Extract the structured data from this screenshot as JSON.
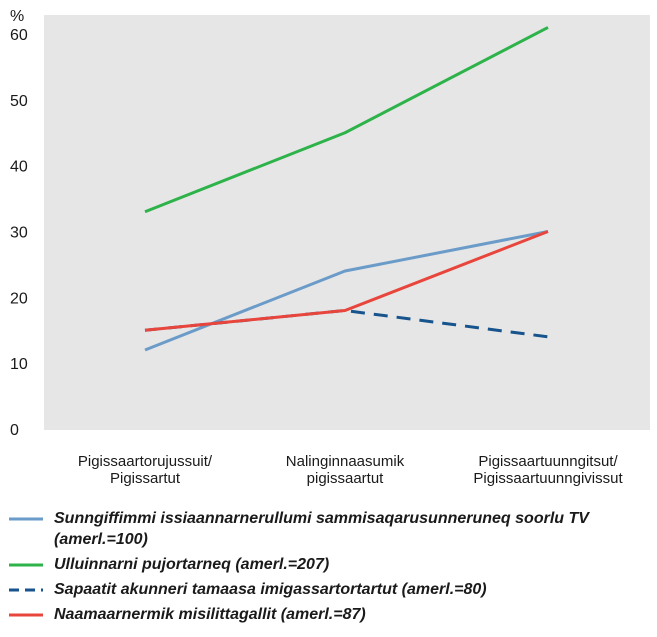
{
  "chart_data": {
    "type": "line",
    "ylabel": "%",
    "ylim": [
      0,
      60
    ],
    "yticks": [
      "0",
      "10",
      "20",
      "30",
      "40",
      "50",
      "60"
    ],
    "categories": [
      [
        "Pigissaartorujussuit/",
        "Pigissartut"
      ],
      [
        "Nalinginnaasumik",
        "pigissaartut"
      ],
      [
        "Pigissaartuunngitsut/",
        "Pigissaartuunngivissut"
      ]
    ],
    "grid": false,
    "background": "#e6e6e6",
    "series": [
      {
        "name": "Sunngiffimmi issiaannarnerullumi sammisaqarusunneruneq soorlu TV (amerl.=100)",
        "values": [
          12,
          24,
          30
        ],
        "color": "#6b9bc8",
        "dash": false
      },
      {
        "name": "Ulluinnarni pujortarneq (amerl.=207)",
        "values": [
          33,
          45,
          61
        ],
        "color": "#2db34a",
        "dash": false
      },
      {
        "name": "Sapaatit akunneri tamaasa imigassartortartut (amerl.=80)",
        "values": [
          15,
          18,
          14
        ],
        "color": "#17538c",
        "dash": true
      },
      {
        "name": "Naamaarnermik misilittagallit (amerl.=87)",
        "values": [
          15,
          18,
          30
        ],
        "color": "#e8453c",
        "dash": false
      }
    ]
  }
}
